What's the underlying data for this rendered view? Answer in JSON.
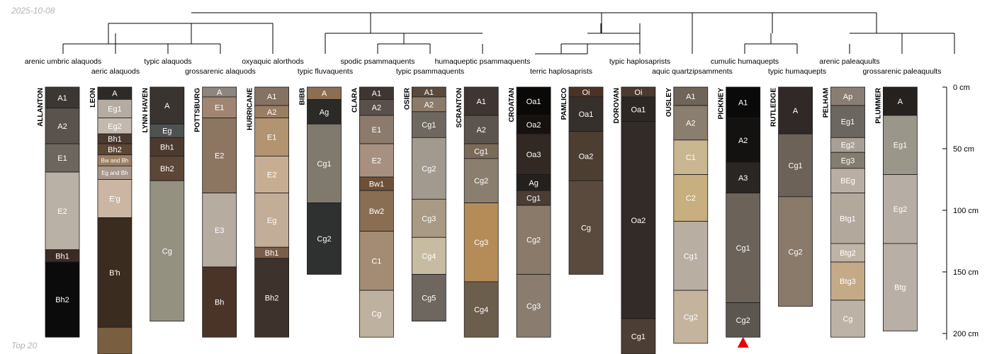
{
  "header": {
    "date": "2025-10-08"
  },
  "footer": {
    "top_label": "Top 20"
  },
  "depth_axis": {
    "unit": "cm",
    "ticks": [
      0,
      50,
      100,
      150,
      200
    ],
    "max_depth": 205
  },
  "taxa": [
    "arenic umbric alaquods",
    "aeric alaquods",
    "typic alaquods",
    "grossarenic alaquods",
    "oxyaquic alorthods",
    "typic fluvaquents",
    "spodic psammaquents",
    "typic psammaquents",
    "humaqueptic psammaquents",
    "terric haplosaprists",
    "typic haplosaprists",
    "aquic quartzipsamments",
    "cumulic humaquepts",
    "typic humaquepts",
    "arenic paleaquults",
    "grossarenic paleaquults"
  ],
  "profiles": [
    {
      "name": "ALLANTON",
      "horizons": [
        {
          "name": "A1",
          "top": 0,
          "bottom": 17,
          "color": "#3d3734"
        },
        {
          "name": "A2",
          "top": 17,
          "bottom": 46,
          "color": "#5a524c"
        },
        {
          "name": "E1",
          "top": 46,
          "bottom": 69,
          "color": "#6d665f"
        },
        {
          "name": "E2",
          "top": 69,
          "bottom": 132,
          "color": "#b9b0a6"
        },
        {
          "name": "Bh1",
          "top": 132,
          "bottom": 142,
          "color": "#3a2c24"
        },
        {
          "name": "Bh2",
          "top": 142,
          "bottom": 203,
          "color": "#0c0b0b"
        }
      ]
    },
    {
      "name": "LEON",
      "horizons": [
        {
          "name": "A",
          "top": 0,
          "bottom": 10,
          "color": "#2e2a28"
        },
        {
          "name": "Eg1",
          "top": 10,
          "bottom": 25,
          "color": "#b4aca2"
        },
        {
          "name": "Eg2",
          "top": 25,
          "bottom": 38,
          "color": "#c3b9ae"
        },
        {
          "name": "Bh1",
          "top": 38,
          "bottom": 46,
          "color": "#4a3a30"
        },
        {
          "name": "Bh2",
          "top": 46,
          "bottom": 55,
          "color": "#5e4634"
        },
        {
          "name": "Bw and Bh",
          "top": 55,
          "bottom": 64,
          "color": "#9a7f62"
        },
        {
          "name": "Eg and Bh",
          "top": 64,
          "bottom": 75,
          "color": "#a8968a"
        },
        {
          "name": "E'g",
          "top": 75,
          "bottom": 106,
          "color": "#cab6a3"
        },
        {
          "name": "B'h",
          "top": 106,
          "bottom": 195,
          "color": "#3b2c20"
        },
        {
          "name": "",
          "top": 195,
          "bottom": 220,
          "color": "#7a5e40"
        }
      ]
    },
    {
      "name": "LYNN HAVEN",
      "horizons": [
        {
          "name": "A",
          "top": 0,
          "bottom": 30,
          "color": "#3a3430"
        },
        {
          "name": "Eg",
          "top": 30,
          "bottom": 41,
          "color": "#4e5250"
        },
        {
          "name": "Bh1",
          "top": 41,
          "bottom": 56,
          "color": "#4c3a2e"
        },
        {
          "name": "Bh2",
          "top": 56,
          "bottom": 76,
          "color": "#5c4636"
        },
        {
          "name": "Cg",
          "top": 76,
          "bottom": 190,
          "color": "#959181"
        }
      ]
    },
    {
      "name": "POTTSBURG",
      "horizons": [
        {
          "name": "A",
          "top": 0,
          "bottom": 8,
          "color": "#8d8580"
        },
        {
          "name": "E1",
          "top": 8,
          "bottom": 25,
          "color": "#a08672"
        },
        {
          "name": "E2",
          "top": 25,
          "bottom": 86,
          "color": "#8c7561"
        },
        {
          "name": "E3",
          "top": 86,
          "bottom": 146,
          "color": "#b7aca0"
        },
        {
          "name": "Bh",
          "top": 146,
          "bottom": 203,
          "color": "#4a3428"
        }
      ]
    },
    {
      "name": "HURRICANE",
      "horizons": [
        {
          "name": "A1",
          "top": 0,
          "bottom": 15,
          "color": "#857262"
        },
        {
          "name": "A2",
          "top": 15,
          "bottom": 25,
          "color": "#9a7e64"
        },
        {
          "name": "E1",
          "top": 25,
          "bottom": 56,
          "color": "#b29470"
        },
        {
          "name": "E2",
          "top": 56,
          "bottom": 86,
          "color": "#c7ae92"
        },
        {
          "name": "Eg",
          "top": 86,
          "bottom": 130,
          "color": "#c2ad98"
        },
        {
          "name": "Bh1",
          "top": 130,
          "bottom": 139,
          "color": "#7a5e4a"
        },
        {
          "name": "Bh2",
          "top": 139,
          "bottom": 203,
          "color": "#3d322c"
        }
      ]
    },
    {
      "name": "BIBB",
      "horizons": [
        {
          "name": "A",
          "top": 0,
          "bottom": 10,
          "color": "#8c6e52"
        },
        {
          "name": "Ag",
          "top": 10,
          "bottom": 30,
          "color": "#2b2a27"
        },
        {
          "name": "Cg1",
          "top": 30,
          "bottom": 94,
          "color": "#7f7a6d"
        },
        {
          "name": "Cg2",
          "top": 94,
          "bottom": 152,
          "color": "#2f3030"
        }
      ]
    },
    {
      "name": "CLARA",
      "horizons": [
        {
          "name": "A1",
          "top": 0,
          "bottom": 10,
          "color": "#3e3633"
        },
        {
          "name": "A2",
          "top": 10,
          "bottom": 23,
          "color": "#5a504b"
        },
        {
          "name": "E1",
          "top": 23,
          "bottom": 46,
          "color": "#8c7a6c"
        },
        {
          "name": "E2",
          "top": 46,
          "bottom": 73,
          "color": "#a89080"
        },
        {
          "name": "Bw1",
          "top": 73,
          "bottom": 84,
          "color": "#6d5037"
        },
        {
          "name": "Bw2",
          "top": 84,
          "bottom": 117,
          "color": "#8a6e53"
        },
        {
          "name": "C1",
          "top": 117,
          "bottom": 165,
          "color": "#a38c73"
        },
        {
          "name": "Cg",
          "top": 165,
          "bottom": 203,
          "color": "#bfb19f"
        }
      ]
    },
    {
      "name": "OSIER",
      "horizons": [
        {
          "name": "A1",
          "top": 0,
          "bottom": 8,
          "color": "#5a4a3d"
        },
        {
          "name": "A2",
          "top": 8,
          "bottom": 20,
          "color": "#8c7b6a"
        },
        {
          "name": "Cg1",
          "top": 20,
          "bottom": 41,
          "color": "#6e6860"
        },
        {
          "name": "Cg2",
          "top": 41,
          "bottom": 91,
          "color": "#a29a8f"
        },
        {
          "name": "Cg3",
          "top": 91,
          "bottom": 122,
          "color": "#a89a84"
        },
        {
          "name": "Cg4",
          "top": 122,
          "bottom": 152,
          "color": "#c7bca2"
        },
        {
          "name": "Cg5",
          "top": 152,
          "bottom": 190,
          "color": "#6d6760"
        }
      ]
    },
    {
      "name": "SCRANTON",
      "horizons": [
        {
          "name": "A1",
          "top": 0,
          "bottom": 23,
          "color": "#3f3633"
        },
        {
          "name": "A2",
          "top": 23,
          "bottom": 46,
          "color": "#5c544e"
        },
        {
          "name": "Cg1",
          "top": 46,
          "bottom": 58,
          "color": "#7a6a58"
        },
        {
          "name": "Cg2",
          "top": 58,
          "bottom": 94,
          "color": "#8a7e6e"
        },
        {
          "name": "Cg3",
          "top": 94,
          "bottom": 158,
          "color": "#b58c58"
        },
        {
          "name": "Cg4",
          "top": 158,
          "bottom": 203,
          "color": "#6c5e4c"
        }
      ]
    },
    {
      "name": "CROATAN",
      "horizons": [
        {
          "name": "Oa1",
          "top": 0,
          "bottom": 23,
          "color": "#0a0908"
        },
        {
          "name": "Oa2",
          "top": 23,
          "bottom": 38,
          "color": "#17120f"
        },
        {
          "name": "Oa3",
          "top": 38,
          "bottom": 71,
          "color": "#322924"
        },
        {
          "name": "Ag",
          "top": 71,
          "bottom": 84,
          "color": "#24201d"
        },
        {
          "name": "Cg1",
          "top": 84,
          "bottom": 96,
          "color": "#4a3d33"
        },
        {
          "name": "Cg2",
          "top": 96,
          "bottom": 152,
          "color": "#8a7a6a"
        },
        {
          "name": "Cg3",
          "top": 152,
          "bottom": 203,
          "color": "#8a7d70"
        }
      ]
    },
    {
      "name": "PAMLICO",
      "horizons": [
        {
          "name": "Oi",
          "top": 0,
          "bottom": 8,
          "color": "#4a3325"
        },
        {
          "name": "Oa1",
          "top": 8,
          "bottom": 36,
          "color": "#36302c"
        },
        {
          "name": "Oa2",
          "top": 36,
          "bottom": 76,
          "color": "#4d3e32"
        },
        {
          "name": "Cg",
          "top": 76,
          "bottom": 152,
          "color": "#5a4a3d"
        }
      ]
    },
    {
      "name": "DOROVAN",
      "horizons": [
        {
          "name": "Oi",
          "top": 0,
          "bottom": 8,
          "color": "#4a3a30"
        },
        {
          "name": "Oa1",
          "top": 8,
          "bottom": 28,
          "color": "#2e2824"
        },
        {
          "name": "Oa2",
          "top": 28,
          "bottom": 188,
          "color": "#322b27"
        },
        {
          "name": "Cg1",
          "top": 188,
          "bottom": 220,
          "color": "#4c3e34"
        }
      ]
    },
    {
      "name": "OUSLEY",
      "horizons": [
        {
          "name": "A1",
          "top": 0,
          "bottom": 15,
          "color": "#6e6458"
        },
        {
          "name": "A2",
          "top": 15,
          "bottom": 43,
          "color": "#8a7e6e"
        },
        {
          "name": "C1",
          "top": 43,
          "bottom": 71,
          "color": "#c9b791"
        },
        {
          "name": "C2",
          "top": 71,
          "bottom": 109,
          "color": "#c7af7f"
        },
        {
          "name": "Cg1",
          "top": 109,
          "bottom": 165,
          "color": "#b8aea2"
        },
        {
          "name": "Cg2",
          "top": 165,
          "bottom": 208,
          "color": "#c4b49e"
        }
      ]
    },
    {
      "name": "PICKNEY",
      "horizons": [
        {
          "name": "A1",
          "top": 0,
          "bottom": 25,
          "color": "#0b0a0a"
        },
        {
          "name": "A2",
          "top": 25,
          "bottom": 61,
          "color": "#131211"
        },
        {
          "name": "A3",
          "top": 61,
          "bottom": 86,
          "color": "#2a2623"
        },
        {
          "name": "Cg1",
          "top": 86,
          "bottom": 175,
          "color": "#6b6359"
        },
        {
          "name": "Cg2",
          "top": 175,
          "bottom": 203,
          "color": "#5c5650"
        }
      ]
    },
    {
      "name": "RUTLEDGE",
      "horizons": [
        {
          "name": "A",
          "top": 0,
          "bottom": 38,
          "color": "#302927"
        },
        {
          "name": "Cg1",
          "top": 38,
          "bottom": 89,
          "color": "#6c6258"
        },
        {
          "name": "Cg2",
          "top": 89,
          "bottom": 178,
          "color": "#8a7a6a"
        }
      ]
    },
    {
      "name": "PELHAM",
      "horizons": [
        {
          "name": "Ap",
          "top": 0,
          "bottom": 15,
          "color": "#8a7e74"
        },
        {
          "name": "Eg1",
          "top": 15,
          "bottom": 41,
          "color": "#6c6660"
        },
        {
          "name": "Eg2",
          "top": 41,
          "bottom": 53,
          "color": "#a8a096"
        },
        {
          "name": "Eg3",
          "top": 53,
          "bottom": 66,
          "color": "#857c70"
        },
        {
          "name": "BEg",
          "top": 66,
          "bottom": 86,
          "color": "#b8aea2"
        },
        {
          "name": "Btg1",
          "top": 86,
          "bottom": 127,
          "color": "#b3a89c"
        },
        {
          "name": "Btg2",
          "top": 127,
          "bottom": 142,
          "color": "#c0b4a6"
        },
        {
          "name": "Btg3",
          "top": 142,
          "bottom": 173,
          "color": "#c4aa86"
        },
        {
          "name": "Cg",
          "top": 173,
          "bottom": 203,
          "color": "#bcb3a6"
        }
      ]
    },
    {
      "name": "PLUMMER",
      "horizons": [
        {
          "name": "A",
          "top": 0,
          "bottom": 23,
          "color": "#252220"
        },
        {
          "name": "Eg1",
          "top": 23,
          "bottom": 71,
          "color": "#9a968a"
        },
        {
          "name": "Eg2",
          "top": 71,
          "bottom": 127,
          "color": "#b6aea4"
        },
        {
          "name": "Btg",
          "top": 127,
          "bottom": 198,
          "color": "#b8b0a6"
        }
      ]
    }
  ],
  "marker": {
    "profile": "PICKNEY",
    "color": "#e8000b"
  }
}
